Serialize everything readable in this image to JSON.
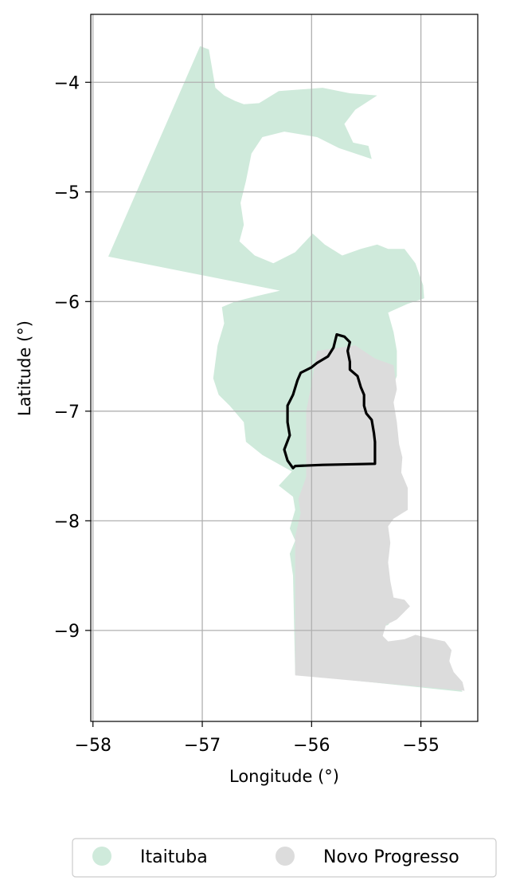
{
  "map": {
    "xlabel": "Longitude (°)",
    "ylabel": "Latitude (°)",
    "xlim": [
      -58.02,
      -54.48
    ],
    "ylim": [
      -9.83,
      -3.38
    ],
    "x_ticks": [
      -58,
      -57,
      -56,
      -55
    ],
    "x_tick_labels": [
      "−58",
      "−57",
      "−56",
      "−55"
    ],
    "y_ticks": [
      -4,
      -5,
      -6,
      -7,
      -8,
      -9
    ],
    "y_tick_labels": [
      "−4",
      "−5",
      "−6",
      "−7",
      "−8",
      "−9"
    ],
    "grid": true,
    "legend_position": "bottom-center"
  },
  "legend": [
    {
      "label": "Itaituba",
      "color": "#cfeadb"
    },
    {
      "label": "Novo Progresso",
      "color": "#dcdcdc"
    }
  ],
  "regions": [
    {
      "name": "Itaituba",
      "color": "#cfeadb",
      "coords": [
        [
          -57.86,
          -5.59
        ],
        [
          -57.02,
          -3.67
        ],
        [
          -56.94,
          -3.7
        ],
        [
          -56.88,
          -4.05
        ],
        [
          -56.8,
          -4.12
        ],
        [
          -56.7,
          -4.17
        ],
        [
          -56.62,
          -4.2
        ],
        [
          -56.48,
          -4.19
        ],
        [
          -56.3,
          -4.08
        ],
        [
          -55.9,
          -4.05
        ],
        [
          -55.65,
          -4.1
        ],
        [
          -55.4,
          -4.12
        ],
        [
          -55.6,
          -4.25
        ],
        [
          -55.7,
          -4.38
        ],
        [
          -55.62,
          -4.55
        ],
        [
          -55.48,
          -4.58
        ],
        [
          -55.45,
          -4.7
        ],
        [
          -55.75,
          -4.6
        ],
        [
          -55.95,
          -4.5
        ],
        [
          -56.25,
          -4.45
        ],
        [
          -56.45,
          -4.5
        ],
        [
          -56.55,
          -4.65
        ],
        [
          -56.6,
          -4.9
        ],
        [
          -56.65,
          -5.1
        ],
        [
          -56.62,
          -5.3
        ],
        [
          -56.66,
          -5.45
        ],
        [
          -56.52,
          -5.58
        ],
        [
          -56.35,
          -5.65
        ],
        [
          -56.15,
          -5.55
        ],
        [
          -55.99,
          -5.38
        ],
        [
          -55.88,
          -5.48
        ],
        [
          -55.72,
          -5.58
        ],
        [
          -55.55,
          -5.52
        ],
        [
          -55.4,
          -5.48
        ],
        [
          -55.3,
          -5.52
        ],
        [
          -55.15,
          -5.52
        ],
        [
          -55.05,
          -5.65
        ],
        [
          -54.98,
          -5.85
        ],
        [
          -54.97,
          -5.97
        ],
        [
          -55.12,
          -6.02
        ],
        [
          -55.3,
          -6.1
        ],
        [
          -55.25,
          -6.28
        ],
        [
          -55.22,
          -6.45
        ],
        [
          -55.22,
          -6.55
        ],
        [
          -55.22,
          -6.68
        ],
        [
          -55.28,
          -6.83
        ],
        [
          -55.33,
          -6.98
        ],
        [
          -55.32,
          -7.12
        ],
        [
          -55.3,
          -7.3
        ],
        [
          -55.3,
          -7.45
        ],
        [
          -55.3,
          -7.58
        ],
        [
          -55.35,
          -7.65
        ],
        [
          -55.38,
          -7.78
        ],
        [
          -55.42,
          -7.9
        ],
        [
          -55.45,
          -8.05
        ],
        [
          -55.38,
          -8.12
        ],
        [
          -55.32,
          -8.3
        ],
        [
          -55.32,
          -8.45
        ],
        [
          -55.32,
          -8.6
        ],
        [
          -55.25,
          -8.72
        ],
        [
          -55.18,
          -8.8
        ],
        [
          -55.25,
          -8.88
        ],
        [
          -55.3,
          -8.95
        ],
        [
          -55.4,
          -8.98
        ],
        [
          -55.42,
          -9.05
        ],
        [
          -55.44,
          -9.12
        ],
        [
          -55.5,
          -9.18
        ],
        [
          -55.48,
          -9.25
        ],
        [
          -55.3,
          -9.3
        ],
        [
          -55.02,
          -9.32
        ],
        [
          -54.98,
          -9.37
        ],
        [
          -54.72,
          -9.42
        ],
        [
          -54.67,
          -9.49
        ],
        [
          -54.62,
          -9.56
        ],
        [
          -56.15,
          -9.4
        ],
        [
          -56.17,
          -8.5
        ],
        [
          -56.2,
          -8.3
        ],
        [
          -56.15,
          -8.18
        ],
        [
          -56.2,
          -8.07
        ],
        [
          -56.15,
          -7.9
        ],
        [
          -56.17,
          -7.78
        ],
        [
          -56.3,
          -7.68
        ],
        [
          -56.18,
          -7.55
        ],
        [
          -56.45,
          -7.4
        ],
        [
          -56.6,
          -7.28
        ],
        [
          -56.62,
          -7.1
        ],
        [
          -56.75,
          -6.95
        ],
        [
          -56.85,
          -6.85
        ],
        [
          -56.9,
          -6.7
        ],
        [
          -56.88,
          -6.55
        ],
        [
          -56.86,
          -6.4
        ],
        [
          -56.8,
          -6.2
        ],
        [
          -56.82,
          -6.05
        ],
        [
          -56.7,
          -6.0
        ],
        [
          -56.5,
          -5.95
        ],
        [
          -56.2,
          -5.88
        ],
        [
          -56.0,
          -5.9
        ],
        [
          -55.8,
          -5.95
        ],
        [
          -55.6,
          -6.02
        ],
        [
          -55.4,
          -6.05
        ],
        [
          -55.28,
          -6.1
        ]
      ]
    },
    {
      "name": "Novo Progresso",
      "color": "#dcdcdc",
      "coords": [
        [
          -55.95,
          -6.45
        ],
        [
          -55.6,
          -6.4
        ],
        [
          -55.42,
          -6.52
        ],
        [
          -55.25,
          -6.58
        ],
        [
          -55.22,
          -6.8
        ],
        [
          -55.25,
          -6.92
        ],
        [
          -55.22,
          -7.1
        ],
        [
          -55.2,
          -7.3
        ],
        [
          -55.17,
          -7.42
        ],
        [
          -55.18,
          -7.56
        ],
        [
          -55.12,
          -7.7
        ],
        [
          -55.12,
          -7.9
        ],
        [
          -55.25,
          -7.98
        ],
        [
          -55.3,
          -8.05
        ],
        [
          -55.28,
          -8.2
        ],
        [
          -55.3,
          -8.38
        ],
        [
          -55.28,
          -8.55
        ],
        [
          -55.25,
          -8.7
        ],
        [
          -55.15,
          -8.72
        ],
        [
          -55.1,
          -8.78
        ],
        [
          -55.22,
          -8.9
        ],
        [
          -55.32,
          -8.95
        ],
        [
          -55.35,
          -9.05
        ],
        [
          -55.3,
          -9.1
        ],
        [
          -55.15,
          -9.08
        ],
        [
          -55.05,
          -9.04
        ],
        [
          -54.97,
          -9.06
        ],
        [
          -54.78,
          -9.1
        ],
        [
          -54.72,
          -9.18
        ],
        [
          -54.74,
          -9.28
        ],
        [
          -54.7,
          -9.38
        ],
        [
          -54.62,
          -9.47
        ],
        [
          -54.6,
          -9.55
        ],
        [
          -56.15,
          -9.41
        ],
        [
          -56.15,
          -8.14
        ],
        [
          -56.1,
          -7.93
        ],
        [
          -56.12,
          -7.8
        ],
        [
          -56.05,
          -7.6
        ],
        [
          -56.05,
          -7.4
        ],
        [
          -56.05,
          -7.2
        ],
        [
          -56.05,
          -7.0
        ],
        [
          -56.0,
          -6.75
        ]
      ]
    }
  ],
  "outline": {
    "color": "#000000",
    "coords": [
      [
        -56.17,
        -7.52
      ],
      [
        -56.22,
        -7.45
      ],
      [
        -56.25,
        -7.35
      ],
      [
        -56.2,
        -7.22
      ],
      [
        -56.22,
        -7.1
      ],
      [
        -56.22,
        -6.95
      ],
      [
        -56.17,
        -6.85
      ],
      [
        -56.13,
        -6.72
      ],
      [
        -56.1,
        -6.65
      ],
      [
        -56.0,
        -6.6
      ],
      [
        -55.95,
        -6.56
      ],
      [
        -55.85,
        -6.5
      ],
      [
        -55.8,
        -6.42
      ],
      [
        -55.77,
        -6.3
      ],
      [
        -55.7,
        -6.32
      ],
      [
        -55.65,
        -6.37
      ],
      [
        -55.67,
        -6.45
      ],
      [
        -55.65,
        -6.55
      ],
      [
        -55.65,
        -6.62
      ],
      [
        -55.58,
        -6.68
      ],
      [
        -55.55,
        -6.78
      ],
      [
        -55.52,
        -6.85
      ],
      [
        -55.52,
        -6.95
      ],
      [
        -55.5,
        -7.02
      ],
      [
        -55.45,
        -7.08
      ],
      [
        -55.43,
        -7.2
      ],
      [
        -55.42,
        -7.28
      ],
      [
        -55.42,
        -7.4
      ],
      [
        -55.42,
        -7.48
      ],
      [
        -55.9,
        -7.49
      ],
      [
        -56.15,
        -7.5
      ],
      [
        -56.17,
        -7.52
      ]
    ]
  }
}
